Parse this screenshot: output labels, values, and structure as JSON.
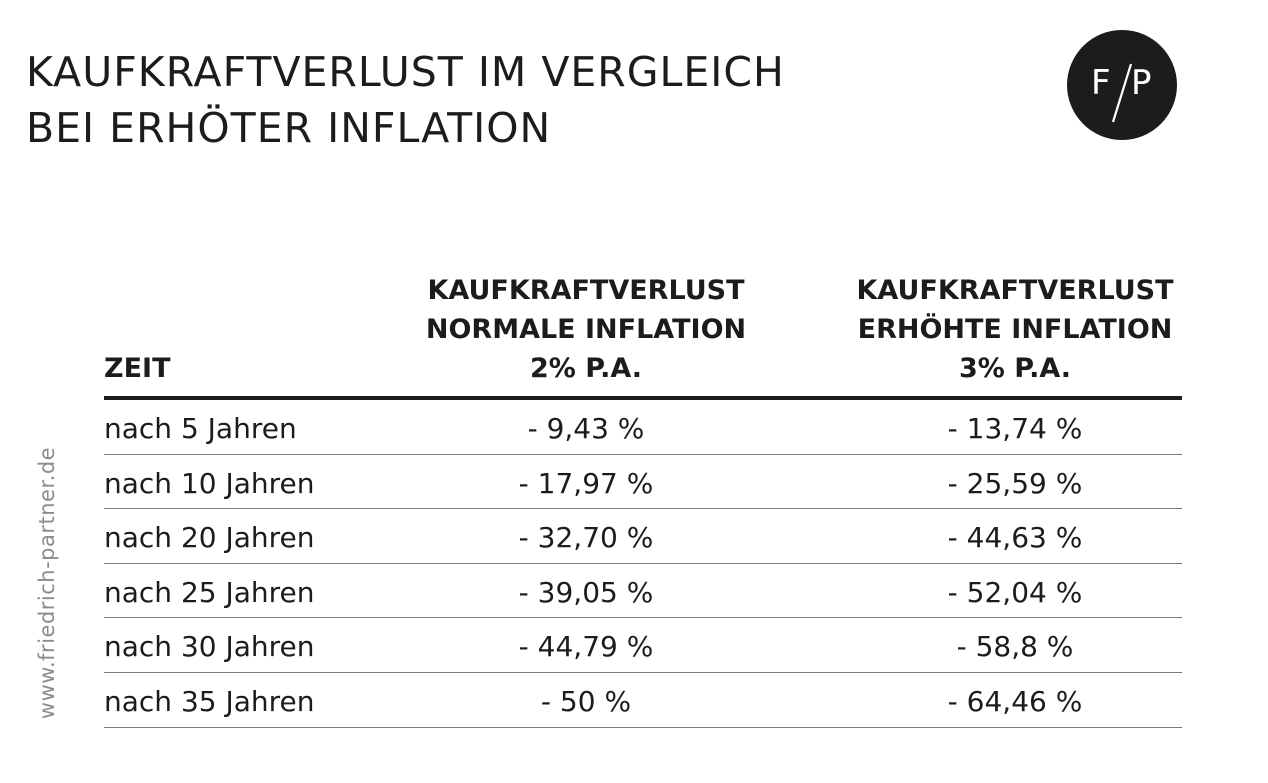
{
  "title": {
    "line1": "KAUFKRAFTVERLUST IM VERGLEICH",
    "line2": "BEI ERHÖTER INFLATION"
  },
  "logo": {
    "left": "F",
    "right": "P"
  },
  "side_url": "www.friedrich-partner.de",
  "table": {
    "headers": [
      {
        "lines": [
          "ZEIT"
        ]
      },
      {
        "lines": [
          "KAUFKRAFTVERLUST",
          "NORMALE INFLATION",
          "2% P.A."
        ]
      },
      {
        "lines": [
          "KAUFKRAFTVERLUST",
          "ERHÖHTE INFLATION",
          "3% P.A."
        ]
      }
    ],
    "rows": [
      {
        "zeit": "nach 5 Jahren",
        "normal": "- 9,43 %",
        "erhoeht": "- 13,74 %"
      },
      {
        "zeit": "nach 10 Jahren",
        "normal": "- 17,97 %",
        "erhoeht": "- 25,59 %"
      },
      {
        "zeit": "nach 20 Jahren",
        "normal": "- 32,70 %",
        "erhoeht": "- 44,63 %"
      },
      {
        "zeit": "nach 25 Jahren",
        "normal": "- 39,05 %",
        "erhoeht": "- 52,04 %"
      },
      {
        "zeit": "nach 30 Jahren",
        "normal": "- 44,79 %",
        "erhoeht": "- 58,8 %"
      },
      {
        "zeit": "nach 35 Jahren",
        "normal": "- 50 %",
        "erhoeht": "- 64,46 %"
      }
    ]
  },
  "colors": {
    "text": "#1c1c1c",
    "logo_bg": "#1c1c1c",
    "side_text": "#8c8c8c",
    "row_rule": "#7a7a7a"
  }
}
